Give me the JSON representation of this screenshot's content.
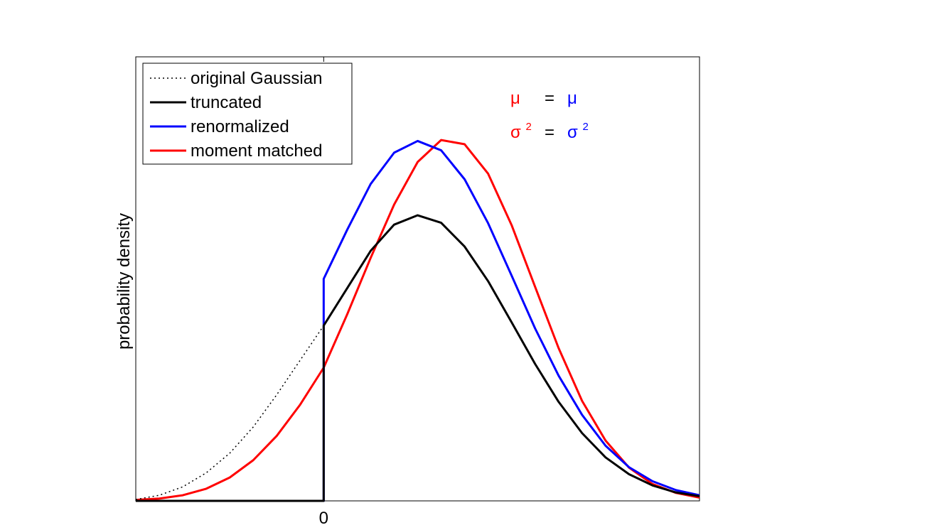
{
  "chart_data": {
    "type": "line",
    "title": "",
    "xlabel": "",
    "ylabel": "probability density",
    "xlim": [
      -2.0,
      4.0
    ],
    "ylim": [
      0,
      0.95
    ],
    "x_ticks": [
      {
        "value": 0,
        "label": "0"
      }
    ],
    "y_ticks": [],
    "grid": false,
    "legend_position": "top-left",
    "series": [
      {
        "name": "original Gaussian",
        "color": "#000000",
        "dash": "dotted",
        "x": [
          -2.0,
          -1.75,
          -1.5,
          -1.25,
          -1.0,
          -0.75,
          -0.5,
          -0.25,
          0.0
        ],
        "y": [
          0.003,
          0.012,
          0.03,
          0.06,
          0.102,
          0.158,
          0.227,
          0.301,
          0.375
        ]
      },
      {
        "name": "truncated",
        "color": "#000000",
        "dash": "solid",
        "x": [
          -2.0,
          -0.01,
          0.0,
          0.0,
          0.25,
          0.5,
          0.75,
          1.0,
          1.25,
          1.5,
          1.75,
          2.0,
          2.25,
          2.5,
          2.75,
          3.0,
          3.25,
          3.5,
          3.75,
          4.0
        ],
        "y": [
          0.0,
          0.0,
          0.0,
          0.375,
          0.455,
          0.535,
          0.591,
          0.611,
          0.595,
          0.544,
          0.47,
          0.382,
          0.293,
          0.212,
          0.145,
          0.093,
          0.057,
          0.033,
          0.018,
          0.01
        ]
      },
      {
        "name": "renormalized",
        "color": "#0000ff",
        "dash": "solid",
        "x": [
          -2.0,
          -0.01,
          0.0,
          0.0,
          0.25,
          0.5,
          0.75,
          1.0,
          1.25,
          1.5,
          1.75,
          2.0,
          2.25,
          2.5,
          2.75,
          3.0,
          3.25,
          3.5,
          3.75,
          4.0
        ],
        "y": [
          0.0,
          0.0,
          0.0,
          0.475,
          0.58,
          0.678,
          0.745,
          0.77,
          0.75,
          0.688,
          0.594,
          0.482,
          0.369,
          0.268,
          0.184,
          0.118,
          0.072,
          0.042,
          0.023,
          0.012
        ]
      },
      {
        "name": "moment matched",
        "color": "#ff0000",
        "dash": "solid",
        "x": [
          -2.0,
          -1.75,
          -1.5,
          -1.25,
          -1.0,
          -0.75,
          -0.5,
          -0.25,
          0.0,
          0.25,
          0.5,
          0.75,
          1.0,
          1.25,
          1.5,
          1.75,
          2.0,
          2.25,
          2.5,
          2.75,
          3.0,
          3.25,
          3.5,
          3.75,
          4.0
        ],
        "y": [
          0.002,
          0.005,
          0.012,
          0.026,
          0.05,
          0.087,
          0.139,
          0.206,
          0.285,
          0.399,
          0.52,
          0.634,
          0.725,
          0.772,
          0.763,
          0.7,
          0.59,
          0.458,
          0.327,
          0.214,
          0.129,
          0.071,
          0.036,
          0.017,
          0.007
        ]
      }
    ],
    "annotations": [
      {
        "id": "mu",
        "left": "μ",
        "left_color": "#ff0000",
        "eq": "=",
        "right": "μ",
        "right_color": "#0000ff",
        "superscript": ""
      },
      {
        "id": "sigma",
        "left": "σ",
        "left_color": "#ff0000",
        "eq": "=",
        "right": "σ",
        "right_color": "#0000ff",
        "superscript": "2"
      }
    ]
  }
}
